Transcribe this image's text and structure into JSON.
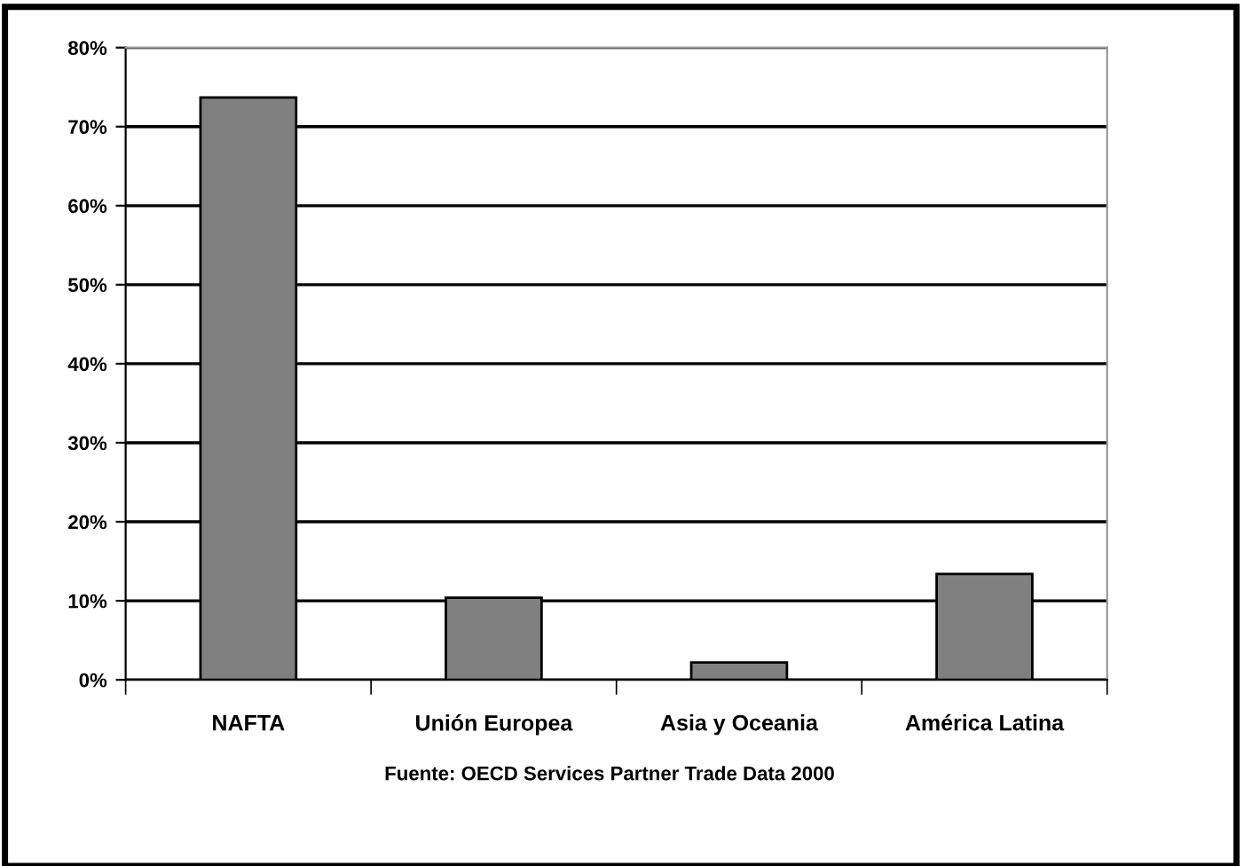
{
  "chart_data": {
    "type": "bar",
    "categories": [
      "NAFTA",
      "Unión Europea",
      "Asia y Oceania",
      "América Latina"
    ],
    "values": [
      73.7,
      10.4,
      2.2,
      13.4
    ],
    "color": "#808080",
    "ylim": [
      0,
      80
    ],
    "yticks": [
      {
        "value": 0,
        "label": "0%"
      },
      {
        "value": 10,
        "label": "10%"
      },
      {
        "value": 20,
        "label": "20%"
      },
      {
        "value": 30,
        "label": "30%"
      },
      {
        "value": 40,
        "label": "40%"
      },
      {
        "value": 50,
        "label": "50%"
      },
      {
        "value": 60,
        "label": "60%"
      },
      {
        "value": 70,
        "label": "70%"
      },
      {
        "value": 80,
        "label": "80%"
      }
    ],
    "grid": "y",
    "annotations": [
      "Fuente: OECD Services Partner Trade Data 2000"
    ]
  }
}
